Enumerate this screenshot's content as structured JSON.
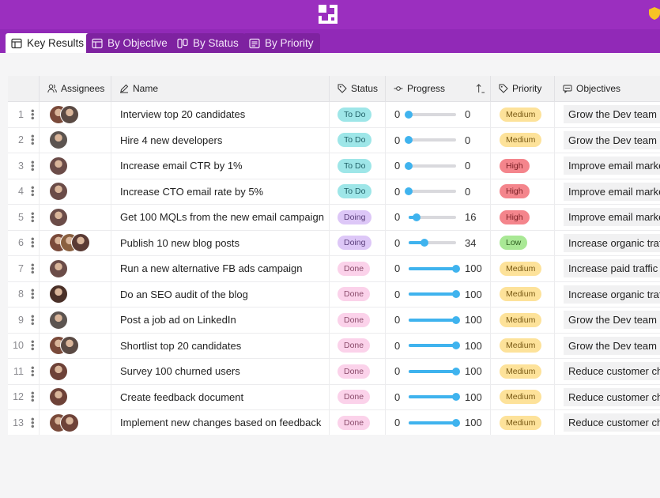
{
  "colors": {
    "header": "#9b2fbf",
    "accent": "#3fb3ee"
  },
  "tabs": [
    {
      "label": "Key Results",
      "icon": "table-icon",
      "active": true
    },
    {
      "label": "By Objective",
      "icon": "table-icon",
      "active": false
    },
    {
      "label": "By Status",
      "icon": "kanban-icon",
      "active": false
    },
    {
      "label": "By Priority",
      "icon": "list-icon",
      "active": false
    }
  ],
  "columns": {
    "assignees": "Assignees",
    "name": "Name",
    "status": "Status",
    "progress": "Progress",
    "priority": "Priority",
    "objectives": "Objectives"
  },
  "rows": [
    {
      "num": "1",
      "avatars": [
        "#7a4a3a",
        "#5a4a44"
      ],
      "name": "Interview top 20 candidates",
      "status": "To Do",
      "progress_min": "0",
      "progress": 0,
      "progress_label": "0",
      "priority": "Medium",
      "objective": "Grow the Dev team"
    },
    {
      "num": "2",
      "avatars": [
        "#5c5450"
      ],
      "name": "Hire 4 new developers",
      "status": "To Do",
      "progress_min": "0",
      "progress": 0,
      "progress_label": "0",
      "priority": "Medium",
      "objective": "Grow the Dev team"
    },
    {
      "num": "3",
      "avatars": [
        "#6b4c48"
      ],
      "name": "Increase email CTR by 1%",
      "status": "To Do",
      "progress_min": "0",
      "progress": 0,
      "progress_label": "0",
      "priority": "High",
      "objective": "Improve email marketing"
    },
    {
      "num": "4",
      "avatars": [
        "#6b4c48"
      ],
      "name": "Increase CTO email rate by 5%",
      "status": "To Do",
      "progress_min": "0",
      "progress": 0,
      "progress_label": "0",
      "priority": "High",
      "objective": "Improve email marketing"
    },
    {
      "num": "5",
      "avatars": [
        "#6b4c48"
      ],
      "name": "Get 100 MQLs from the new email campaign",
      "status": "Doing",
      "progress_min": "0",
      "progress": 16,
      "progress_label": "16",
      "priority": "High",
      "objective": "Improve email marketing"
    },
    {
      "num": "6",
      "avatars": [
        "#7a4a3a",
        "#8a6040",
        "#5a3a34"
      ],
      "name": "Publish 10 new blog posts",
      "status": "Doing",
      "progress_min": "0",
      "progress": 34,
      "progress_label": "34",
      "priority": "Low",
      "objective": "Increase organic traffic"
    },
    {
      "num": "7",
      "avatars": [
        "#6b4c48"
      ],
      "name": "Run a new alternative FB ads campaign",
      "status": "Done",
      "progress_min": "0",
      "progress": 100,
      "progress_label": "100",
      "priority": "Medium",
      "objective": "Increase paid traffic"
    },
    {
      "num": "8",
      "avatars": [
        "#4a3028"
      ],
      "name": "Do an SEO audit of the blog",
      "status": "Done",
      "progress_min": "0",
      "progress": 100,
      "progress_label": "100",
      "priority": "Medium",
      "objective": "Increase organic traffic"
    },
    {
      "num": "9",
      "avatars": [
        "#5c5450"
      ],
      "name": "Post a job ad on LinkedIn",
      "status": "Done",
      "progress_min": "0",
      "progress": 100,
      "progress_label": "100",
      "priority": "Medium",
      "objective": "Grow the Dev team"
    },
    {
      "num": "10",
      "avatars": [
        "#7a4a3a",
        "#5a4a44"
      ],
      "name": "Shortlist top 20 candidates",
      "status": "Done",
      "progress_min": "0",
      "progress": 100,
      "progress_label": "100",
      "priority": "Medium",
      "objective": "Grow the Dev team"
    },
    {
      "num": "11",
      "avatars": [
        "#6e4238"
      ],
      "name": "Survey 100 churned users",
      "status": "Done",
      "progress_min": "0",
      "progress": 100,
      "progress_label": "100",
      "priority": "Medium",
      "objective": "Reduce customer churn"
    },
    {
      "num": "12",
      "avatars": [
        "#6e4238"
      ],
      "name": "Create feedback document",
      "status": "Done",
      "progress_min": "0",
      "progress": 100,
      "progress_label": "100",
      "priority": "Medium",
      "objective": "Reduce customer churn"
    },
    {
      "num": "13",
      "avatars": [
        "#7a4a3a",
        "#6e4238"
      ],
      "name": "Implement new changes based on feedback",
      "status": "Done",
      "progress_min": "0",
      "progress": 100,
      "progress_label": "100",
      "priority": "Medium",
      "objective": "Reduce customer churn"
    }
  ]
}
